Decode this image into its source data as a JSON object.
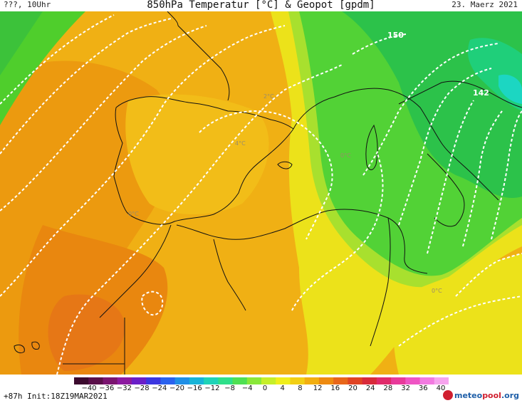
{
  "header": {
    "left": "???, 10Uhr",
    "title": "850hPa Temperatur [°C] & Geopot [gpdm]",
    "date": "23. Maerz 2021"
  },
  "map": {
    "geopotential_labels": [
      "150",
      "142"
    ],
    "isotherm_labels": [
      "2°C",
      "4°C",
      "0°C",
      "0°C",
      "0°C"
    ]
  },
  "colorbar": {
    "ticks": [
      "−40",
      "−36",
      "−32",
      "−28",
      "−24",
      "−20",
      "−16",
      "−12",
      "−8",
      "−4",
      "0",
      "4",
      "8",
      "12",
      "16",
      "20",
      "24",
      "28",
      "32",
      "36",
      "40"
    ],
    "colors": [
      "#3b0a2e",
      "#5a0f4a",
      "#7a1470",
      "#8c1aa0",
      "#6a1fc8",
      "#3b36e0",
      "#2a62ee",
      "#1f8fe6",
      "#18b4d8",
      "#1fd3b8",
      "#2ee08a",
      "#4fe053",
      "#8ae83a",
      "#c6ef2a",
      "#f0ef1c",
      "#f2cf14",
      "#f2ae10",
      "#ee8a10",
      "#e8661a",
      "#e04424",
      "#d82a3a",
      "#e02a6a",
      "#e83a9a",
      "#ef55c4",
      "#f27ae0",
      "#f6a4ee"
    ]
  },
  "footer": {
    "init": "+87h  Init:18Z19MAR2021",
    "logo_meteo": "meteo",
    "logo_pool": "pool",
    "logo_org": ".org"
  }
}
